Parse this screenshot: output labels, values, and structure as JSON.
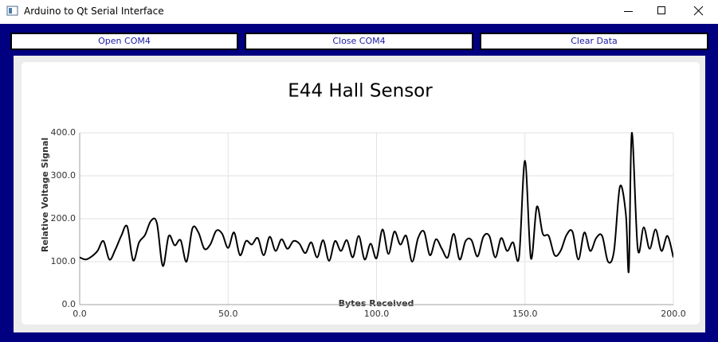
{
  "window": {
    "title": "Arduino to Qt Serial Interface"
  },
  "buttons": [
    "Open COM4",
    "Close COM4",
    "Clear Data"
  ],
  "chart_data": {
    "type": "line",
    "title": "E44 Hall Sensor",
    "x_label": "Bytes Received",
    "y_label": "Relative Voltage Signal",
    "color": "#000000",
    "grid": true,
    "xlim": [
      0,
      200
    ],
    "ylim": [
      0,
      400
    ],
    "xticks": [
      {
        "value": 0,
        "label": "0.0"
      },
      {
        "value": 50,
        "label": "50.0"
      },
      {
        "value": 100,
        "label": "100.0"
      },
      {
        "value": 150,
        "label": "150.0"
      },
      {
        "value": 200,
        "label": "200.0"
      }
    ],
    "yticks": [
      {
        "value": 0,
        "label": "0.0"
      },
      {
        "value": 100,
        "label": "100.0"
      },
      {
        "value": 200,
        "label": "200.0"
      },
      {
        "value": 300,
        "label": "300.0"
      },
      {
        "value": 400,
        "label": "400.0"
      }
    ],
    "x": [
      0,
      2,
      4,
      6,
      8,
      10,
      12,
      14,
      16,
      18,
      20,
      22,
      24,
      26,
      28,
      30,
      32,
      34,
      36,
      38,
      40,
      42,
      44,
      46,
      48,
      50,
      52,
      54,
      56,
      58,
      60,
      62,
      64,
      66,
      68,
      70,
      72,
      74,
      76,
      78,
      80,
      82,
      84,
      86,
      88,
      90,
      92,
      94,
      96,
      98,
      100,
      102,
      104,
      106,
      108,
      110,
      112,
      114,
      116,
      118,
      120,
      122,
      124,
      126,
      128,
      130,
      132,
      134,
      136,
      138,
      140,
      142,
      144,
      146,
      148,
      150,
      152,
      154,
      156,
      158,
      160,
      162,
      164,
      166,
      168,
      170,
      172,
      174,
      176,
      178,
      180,
      182,
      184,
      185,
      186,
      188,
      190,
      192,
      194,
      196,
      198,
      200
    ],
    "values": [
      110,
      105,
      112,
      125,
      148,
      105,
      128,
      160,
      182,
      103,
      145,
      162,
      195,
      190,
      90,
      160,
      138,
      150,
      100,
      178,
      168,
      130,
      140,
      172,
      165,
      132,
      168,
      115,
      148,
      140,
      155,
      115,
      158,
      125,
      152,
      130,
      148,
      142,
      120,
      145,
      110,
      150,
      102,
      148,
      125,
      150,
      110,
      160,
      105,
      142,
      108,
      175,
      118,
      170,
      140,
      160,
      100,
      155,
      170,
      115,
      152,
      130,
      110,
      165,
      105,
      148,
      150,
      112,
      158,
      160,
      110,
      155,
      125,
      145,
      110,
      335,
      108,
      228,
      165,
      160,
      115,
      125,
      162,
      170,
      105,
      168,
      125,
      155,
      160,
      100,
      125,
      275,
      210,
      80,
      400,
      130,
      180,
      130,
      175,
      125,
      160,
      110
    ]
  }
}
